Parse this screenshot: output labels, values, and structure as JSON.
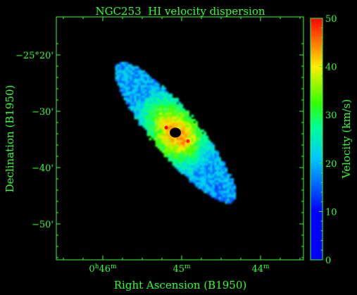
{
  "chart_data": {
    "type": "heatmap",
    "title": "NGC253  HI velocity dispersion",
    "xlabel": "Right Ascension (B1950)",
    "ylabel": "Declination (B1950)",
    "colorbar_label": "Velocity (km/s)",
    "x_ticks": [
      {
        "h": "0",
        "h_unit": "h",
        "m": "46",
        "m_unit": "m"
      },
      {
        "h": "",
        "h_unit": "",
        "m": "45",
        "m_unit": "m"
      },
      {
        "h": "",
        "h_unit": "",
        "m": "44",
        "m_unit": "m"
      }
    ],
    "x_tick_minutes": [
      46,
      45,
      44
    ],
    "y_ticks": [
      "−25°20'",
      "−30'",
      "−40'",
      "−50'"
    ],
    "y_tick_arcmin": [
      -20,
      -30,
      -40,
      -50
    ],
    "colorbar_ticks": [
      "0",
      "10",
      "20",
      "30",
      "40",
      "50"
    ],
    "colorbar_values": [
      0,
      10,
      20,
      30,
      40,
      50
    ],
    "zlim": [
      0,
      50
    ],
    "grid": false,
    "colormap": [
      "#0000ff",
      "#00c8ff",
      "#00ff96",
      "#33ff00",
      "#ffee00",
      "#ff7700",
      "#ff0000"
    ],
    "galaxy": {
      "center_ra_min": 45.08,
      "center_dec_arcmin": -33.8,
      "major_axis_arcmin": 32,
      "minor_axis_arcmin": 8,
      "position_angle_deg": 50,
      "peak_dispersion": 50,
      "edge_dispersion": 10,
      "central_hole": true
    }
  },
  "colors": {
    "background": "#000000",
    "axes": "#33ff33",
    "text": "#33ff33"
  }
}
